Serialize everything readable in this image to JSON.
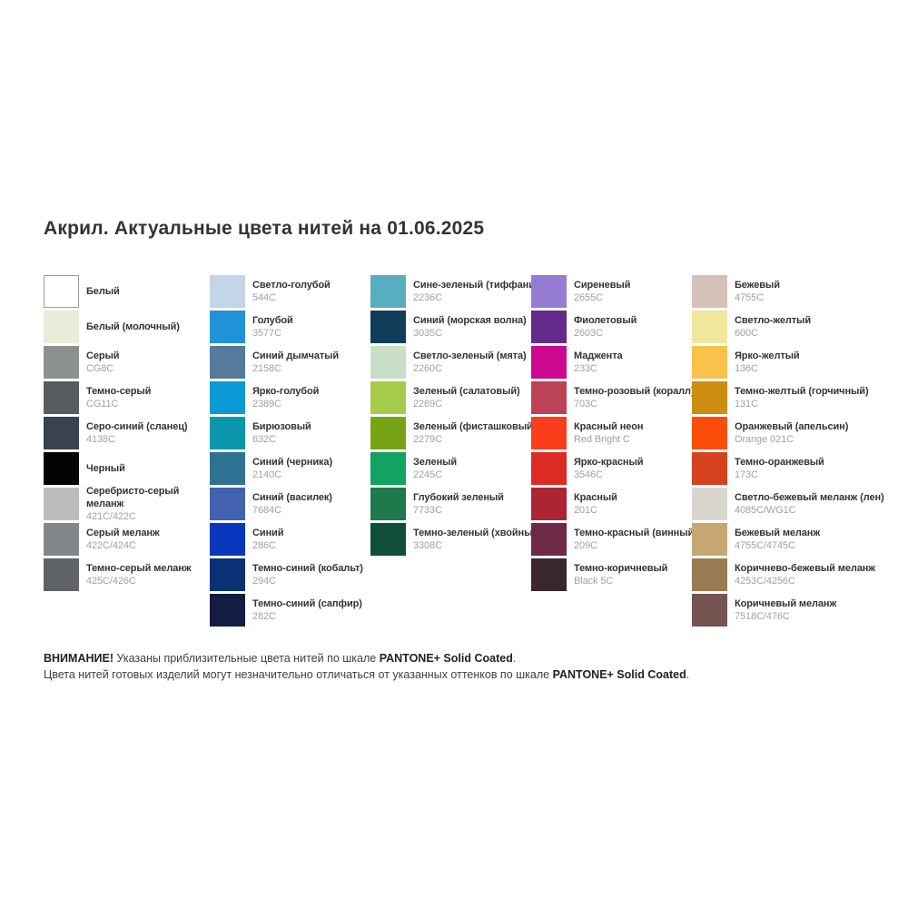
{
  "title": "Акрил. Актуальные цвета нитей на 01.06.2025",
  "columns": [
    {
      "items": [
        {
          "name": "Белый",
          "code": "",
          "hex": "#ffffff",
          "border": true
        },
        {
          "name": "Белый (молочный)",
          "code": "",
          "hex": "#ebecd9"
        },
        {
          "name": "Серый",
          "code": "CG8C",
          "hex": "#8d9091"
        },
        {
          "name": "Темно-серый",
          "code": "CG11C",
          "hex": "#595c5f"
        },
        {
          "name": "Серо-синий (сланец)",
          "code": "4138C",
          "hex": "#39434f"
        },
        {
          "name": "Черный",
          "code": "",
          "hex": "#040404"
        },
        {
          "name": "Серебристо-серый\nмеланж",
          "code": "421C/422C",
          "hex": "#bcbebc"
        },
        {
          "name": "Серый меланж",
          "code": "422C/424C",
          "hex": "#838789"
        },
        {
          "name": "Темно-серый меланж",
          "code": "425C/426C",
          "hex": "#5f6365"
        }
      ]
    },
    {
      "items": [
        {
          "name": "Светло-голубой",
          "code": "544C",
          "hex": "#c3d5e8"
        },
        {
          "name": "Голубой",
          "code": "3577C",
          "hex": "#2093d8"
        },
        {
          "name": "Синий дымчатый",
          "code": "2158C",
          "hex": "#547a9c"
        },
        {
          "name": "Ярко-голубой",
          "code": "2389C",
          "hex": "#0c9ad6"
        },
        {
          "name": "Бирюзовый",
          "code": "632C",
          "hex": "#0b96ad"
        },
        {
          "name": "Синий (черника)",
          "code": "2140C",
          "hex": "#2d7292"
        },
        {
          "name": "Синий (василек)",
          "code": "7684C",
          "hex": "#4162ae"
        },
        {
          "name": "Синий",
          "code": "286C",
          "hex": "#0936bd"
        },
        {
          "name": "Темно-синий (кобальт)",
          "code": "294C",
          "hex": "#0a3175"
        },
        {
          "name": "Темно-синий (сапфир)",
          "code": "282C",
          "hex": "#131c45"
        }
      ]
    },
    {
      "items": [
        {
          "name": "Сине-зеленый (тиффани)",
          "code": "2236C",
          "hex": "#58adc1"
        },
        {
          "name": "Синий (морская волна)",
          "code": "3035C",
          "hex": "#103d59"
        },
        {
          "name": "Светло-зеленый (мята)",
          "code": "2260C",
          "hex": "#cadfca"
        },
        {
          "name": "Зеленый (салатовый)",
          "code": "2269C",
          "hex": "#a5cb4a"
        },
        {
          "name": "Зеленый (фисташковый)",
          "code": "2279C",
          "hex": "#77a317"
        },
        {
          "name": "Зеленый",
          "code": "2245C",
          "hex": "#12a261"
        },
        {
          "name": "Глубокий зеленый",
          "code": "7733C",
          "hex": "#1e7a4b"
        },
        {
          "name": "Темно-зеленый (хвойный)",
          "code": "3308C",
          "hex": "#0f4f39"
        }
      ]
    },
    {
      "items": [
        {
          "name": "Сиреневый",
          "code": "2655C",
          "hex": "#957bd3"
        },
        {
          "name": "Фиолетовый",
          "code": "2603C",
          "hex": "#65298c"
        },
        {
          "name": "Маджента",
          "code": "233C",
          "hex": "#cd0890"
        },
        {
          "name": "Темно-розовый (коралл)",
          "code": "703C",
          "hex": "#bb4355"
        },
        {
          "name": "Красный неон",
          "code": "Red Bright C",
          "hex": "#fa3e1c"
        },
        {
          "name": "Ярко-красный",
          "code": "3546C",
          "hex": "#dd2a24"
        },
        {
          "name": "Красный",
          "code": "201C",
          "hex": "#ab2535"
        },
        {
          "name": "Темно-красный (винный)",
          "code": "209C",
          "hex": "#6e2a45"
        },
        {
          "name": "Темно-коричневый",
          "code": "Black 5C",
          "hex": "#3a272b"
        }
      ]
    },
    {
      "items": [
        {
          "name": "Бежевый",
          "code": "4755C",
          "hex": "#d6c1b9"
        },
        {
          "name": "Светло-желтый",
          "code": "600C",
          "hex": "#f0e79c"
        },
        {
          "name": "Ярко-желтый",
          "code": "136C",
          "hex": "#f9c24a"
        },
        {
          "name": "Темно-желтый (горчичный)",
          "code": "131C",
          "hex": "#cd8d10"
        },
        {
          "name": "Оранжевый (апельсин)",
          "code": "Orange 021C",
          "hex": "#fb4d09"
        },
        {
          "name": "Темно-оранжевый",
          "code": "173C",
          "hex": "#d4431e"
        },
        {
          "name": "Светло-бежевый меланж (лен)",
          "code": "4085C/WG1C",
          "hex": "#d9d6cf"
        },
        {
          "name": "Бежевый меланж",
          "code": "4755C/4745C",
          "hex": "#c7a771"
        },
        {
          "name": "Коричнево-бежевый меланж",
          "code": "4253C/4256C",
          "hex": "#9a7b53"
        },
        {
          "name": "Коричневый меланж",
          "code": "7518C/476C",
          "hex": "#745551"
        }
      ]
    }
  ],
  "footer": {
    "line1": [
      {
        "text": "ВНИМАНИЕ!",
        "bold": true
      },
      {
        "text": " Указаны приблизительные цвета нитей по шкале ",
        "bold": false
      },
      {
        "text": "PANTONE+ Solid Coated",
        "bold": true
      },
      {
        "text": ".",
        "bold": false
      }
    ],
    "line2": [
      {
        "text": "Цвета нитей готовых изделий могут незначительно отличаться от указанных оттенков по шкале ",
        "bold": false
      },
      {
        "text": "PANTONE+ Solid Coated",
        "bold": true
      },
      {
        "text": ".",
        "bold": false
      }
    ]
  }
}
